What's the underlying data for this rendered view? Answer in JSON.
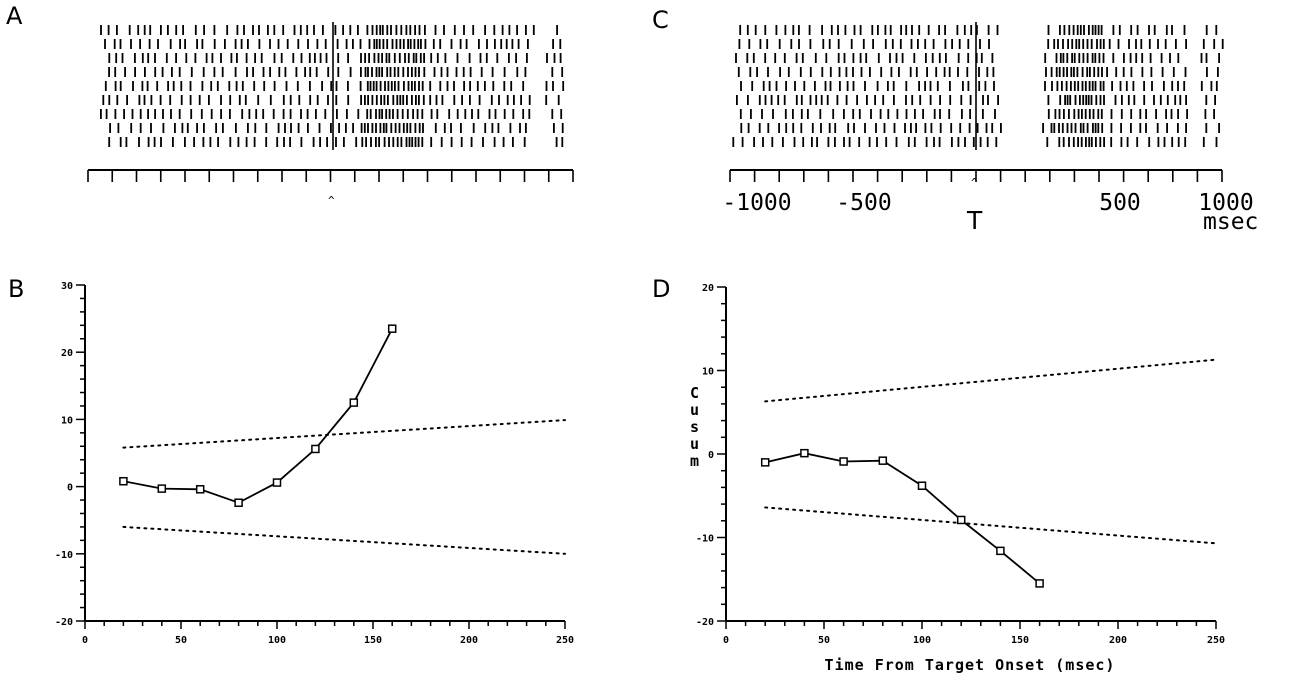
{
  "panels": [
    {
      "id": "A",
      "label": "A"
    },
    {
      "id": "B",
      "label": "B"
    },
    {
      "id": "C",
      "label": "C"
    },
    {
      "id": "D",
      "label": "D"
    }
  ],
  "raster_A": {
    "event_marker": "^",
    "xlim": [
      -1000,
      1000
    ],
    "major_tick_step": 100,
    "trials": 9
  },
  "raster_C": {
    "event_marker": "^",
    "event_label": "T",
    "xlim": [
      -1000,
      1000
    ],
    "major_tick_step": 100,
    "tick_labels": [
      "-1000",
      "-500",
      "500",
      "1000"
    ],
    "unit_label": "msec",
    "trials": 9
  },
  "chart_data": [
    {
      "panel": "B",
      "type": "line",
      "x": [
        20,
        40,
        60,
        80,
        100,
        120,
        140,
        160
      ],
      "y": [
        0.8,
        -0.3,
        -0.4,
        -2.4,
        0.6,
        5.6,
        12.5,
        23.5
      ],
      "upper_bound": {
        "x": [
          20,
          250
        ],
        "y": [
          5.8,
          9.9
        ]
      },
      "lower_bound": {
        "x": [
          20,
          250
        ],
        "y": [
          -6.0,
          -10.0
        ]
      },
      "xlim": [
        0,
        250
      ],
      "ylim": [
        -20,
        30
      ],
      "xticks": [
        0,
        50,
        100,
        150,
        200,
        250
      ],
      "yticks": [
        -20,
        -10,
        0,
        10,
        20,
        30
      ],
      "xlabel": "",
      "ylabel": ""
    },
    {
      "panel": "D",
      "type": "line",
      "x": [
        20,
        40,
        60,
        80,
        100,
        120,
        140,
        160
      ],
      "y": [
        -1.0,
        0.1,
        -0.9,
        -0.8,
        -3.8,
        -7.9,
        -11.6,
        -15.5
      ],
      "upper_bound": {
        "x": [
          20,
          250
        ],
        "y": [
          6.3,
          11.3
        ]
      },
      "lower_bound": {
        "x": [
          20,
          250
        ],
        "y": [
          -6.4,
          -10.7
        ]
      },
      "xlim": [
        0,
        250
      ],
      "ylim": [
        -20,
        20
      ],
      "xticks": [
        0,
        50,
        100,
        150,
        200,
        250
      ],
      "yticks": [
        -20,
        -10,
        0,
        10,
        20
      ],
      "xlabel": "Time From Target Onset (msec)",
      "ylabel": "Cusum"
    }
  ]
}
